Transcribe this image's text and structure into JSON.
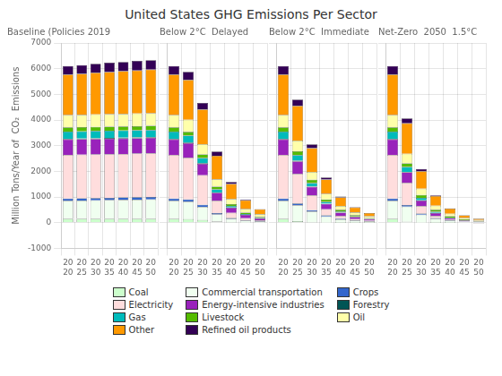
{
  "title": "United States GHG Emissions Per Sector",
  "legend": "bottom",
  "chart_data": [
    {
      "type": "bar",
      "title": "Baseline (Policies 2019",
      "ylabel": "Million Tons/Year of  CO₂  Emissions",
      "categories": [
        "2020",
        "2025",
        "2030",
        "2035",
        "2040",
        "2045",
        "2050"
      ],
      "series": [
        {
          "name": "Coal",
          "color": "#ccffcc",
          "values": [
            150,
            150,
            150,
            150,
            150,
            150,
            150
          ]
        },
        {
          "name": "Commercial transportation",
          "color": "#f0fff0",
          "values": [
            700,
            710,
            720,
            730,
            740,
            750,
            760
          ]
        },
        {
          "name": "Crops",
          "color": "#3366cc",
          "values": [
            90,
            90,
            90,
            90,
            90,
            90,
            90
          ]
        },
        {
          "name": "Electricity",
          "color": "#ffdddd",
          "values": [
            1700,
            1700,
            1700,
            1700,
            1700,
            1700,
            1700
          ]
        },
        {
          "name": "Energy-intensive industries",
          "color": "#9922bb",
          "values": [
            600,
            600,
            600,
            600,
            600,
            600,
            600
          ]
        },
        {
          "name": "Forestry",
          "color": "#005555",
          "values": [
            30,
            30,
            30,
            30,
            30,
            30,
            30
          ]
        },
        {
          "name": "Gas",
          "color": "#00bbbb",
          "values": [
            280,
            280,
            280,
            280,
            280,
            280,
            280
          ]
        },
        {
          "name": "Livestock",
          "color": "#55bb00",
          "values": [
            160,
            160,
            160,
            160,
            160,
            160,
            160
          ]
        },
        {
          "name": "Oil",
          "color": "#ffffaa",
          "values": [
            480,
            480,
            490,
            490,
            490,
            490,
            490
          ]
        },
        {
          "name": "Other",
          "color": "#ff9900",
          "values": [
            1580,
            1600,
            1620,
            1640,
            1660,
            1680,
            1700
          ]
        },
        {
          "name": "Refined oil products",
          "color": "#330055",
          "values": [
            330,
            340,
            350,
            360,
            360,
            370,
            370
          ]
        }
      ],
      "stacked": true,
      "ylim": [
        -1000,
        7000
      ],
      "yticks": [
        -1000,
        0,
        1000,
        2000,
        3000,
        4000,
        5000,
        6000,
        7000
      ],
      "grid": true
    },
    {
      "type": "bar",
      "title": "Below 2°C  Delayed",
      "categories": [
        "2020",
        "2025",
        "2030",
        "2035",
        "2040",
        "2045",
        "2050"
      ],
      "series": [
        {
          "name": "Coal",
          "color": "#ccffcc",
          "values": [
            150,
            140,
            100,
            40,
            10,
            5,
            5
          ]
        },
        {
          "name": "Commercial transportation",
          "color": "#f0fff0",
          "values": [
            700,
            680,
            520,
            280,
            140,
            70,
            40
          ]
        },
        {
          "name": "Crops",
          "color": "#3366cc",
          "values": [
            90,
            85,
            75,
            55,
            35,
            20,
            12
          ]
        },
        {
          "name": "Electricity",
          "color": "#ffdddd",
          "values": [
            1700,
            1620,
            1150,
            480,
            200,
            80,
            30
          ]
        },
        {
          "name": "Energy-intensive industries",
          "color": "#9922bb",
          "values": [
            600,
            570,
            450,
            310,
            200,
            130,
            80
          ]
        },
        {
          "name": "Forestry",
          "color": "#005555",
          "values": [
            30,
            28,
            22,
            14,
            7,
            3,
            2
          ]
        },
        {
          "name": "Gas",
          "color": "#00bbbb",
          "values": [
            280,
            265,
            200,
            115,
            58,
            28,
            15
          ]
        },
        {
          "name": "Livestock",
          "color": "#55bb00",
          "values": [
            160,
            155,
            140,
            105,
            76,
            57,
            43
          ]
        },
        {
          "name": "Oil",
          "color": "#ffffaa",
          "values": [
            480,
            465,
            400,
            290,
            200,
            140,
            100
          ]
        },
        {
          "name": "Other",
          "color": "#ff9900",
          "values": [
            1580,
            1550,
            1350,
            920,
            580,
            340,
            195
          ]
        },
        {
          "name": "Refined oil products",
          "color": "#330055",
          "values": [
            330,
            315,
            255,
            160,
            82,
            32,
            12
          ]
        }
      ],
      "stacked": true,
      "ylim": [
        -1000,
        7000
      ],
      "yticks": [
        -1000,
        0,
        1000,
        2000,
        3000,
        4000,
        5000,
        6000,
        7000
      ],
      "grid": true,
      "tick_labels": "x"
    },
    {
      "type": "bar",
      "title": "Below 2°C  Immediate",
      "categories": [
        "2020",
        "2025",
        "2030",
        "2035",
        "2040",
        "2045",
        "2050"
      ],
      "series": [
        {
          "name": "Coal",
          "color": "#ccffcc",
          "values": [
            150,
            60,
            12,
            5,
            3,
            2,
            1
          ]
        },
        {
          "name": "Commercial transportation",
          "color": "#f0fff0",
          "values": [
            700,
            620,
            420,
            240,
            130,
            75,
            48
          ]
        },
        {
          "name": "Crops",
          "color": "#3366cc",
          "values": [
            90,
            72,
            54,
            38,
            24,
            14,
            9
          ]
        },
        {
          "name": "Electricity",
          "color": "#ffdddd",
          "values": [
            1700,
            1150,
            580,
            240,
            100,
            48,
            20
          ]
        },
        {
          "name": "Energy-intensive industries",
          "color": "#9922bb",
          "values": [
            600,
            490,
            330,
            210,
            138,
            88,
            58
          ]
        },
        {
          "name": "Forestry",
          "color": "#005555",
          "values": [
            30,
            22,
            14,
            8,
            4,
            2,
            1
          ]
        },
        {
          "name": "Gas",
          "color": "#00bbbb",
          "values": [
            280,
            215,
            135,
            68,
            34,
            17,
            9
          ]
        },
        {
          "name": "Livestock",
          "color": "#55bb00",
          "values": [
            160,
            148,
            124,
            96,
            72,
            53,
            38
          ]
        },
        {
          "name": "Oil",
          "color": "#ffffaa",
          "values": [
            480,
            420,
            310,
            218,
            148,
            100,
            68
          ]
        },
        {
          "name": "Other",
          "color": "#ff9900",
          "values": [
            1580,
            1350,
            920,
            560,
            330,
            195,
            118
          ]
        },
        {
          "name": "Refined oil products",
          "color": "#330055",
          "values": [
            330,
            245,
            148,
            78,
            34,
            14,
            5
          ]
        }
      ],
      "stacked": true,
      "ylim": [
        -1000,
        7000
      ],
      "yticks": [
        -1000,
        0,
        1000,
        2000,
        3000,
        4000,
        5000,
        6000,
        7000
      ],
      "grid": true,
      "tick_labels": "x"
    },
    {
      "type": "bar",
      "title": "Net-Zero  2050  1.5°C",
      "categories": [
        "2020",
        "2025",
        "2030",
        "2035",
        "2040",
        "2045",
        "2050"
      ],
      "series": [
        {
          "name": "Coal",
          "color": "#ccffcc",
          "values": [
            150,
            35,
            6,
            2,
            1,
            0,
            0
          ]
        },
        {
          "name": "Commercial transportation",
          "color": "#f0fff0",
          "values": [
            700,
            590,
            310,
            155,
            78,
            38,
            19
          ]
        },
        {
          "name": "Crops",
          "color": "#3366cc",
          "values": [
            90,
            65,
            42,
            26,
            15,
            7,
            4
          ]
        },
        {
          "name": "Electricity",
          "color": "#ffdddd",
          "values": [
            1700,
            860,
            290,
            75,
            18,
            4,
            -35
          ]
        },
        {
          "name": "Energy-intensive industries",
          "color": "#9922bb",
          "values": [
            600,
            410,
            215,
            118,
            63,
            33,
            17
          ]
        },
        {
          "name": "Forestry",
          "color": "#005555",
          "values": [
            30,
            19,
            8,
            4,
            2,
            1,
            0
          ]
        },
        {
          "name": "Gas",
          "color": "#00bbbb",
          "values": [
            280,
            190,
            95,
            43,
            19,
            7,
            3
          ]
        },
        {
          "name": "Livestock",
          "color": "#55bb00",
          "values": [
            160,
            138,
            110,
            82,
            58,
            40,
            27
          ]
        },
        {
          "name": "Oil",
          "color": "#ffffaa",
          "values": [
            480,
            380,
            248,
            158,
            98,
            58,
            34
          ]
        },
        {
          "name": "Other",
          "color": "#ff9900",
          "values": [
            1580,
            1180,
            680,
            370,
            196,
            97,
            49
          ]
        },
        {
          "name": "Refined oil products",
          "color": "#330055",
          "values": [
            330,
            195,
            88,
            34,
            12,
            4,
            1
          ]
        }
      ],
      "stacked": true,
      "ylim": [
        -1000,
        7000
      ],
      "yticks": [
        -1000,
        0,
        1000,
        2000,
        3000,
        4000,
        5000,
        6000,
        7000
      ],
      "grid": true,
      "tick_labels": "x"
    }
  ]
}
